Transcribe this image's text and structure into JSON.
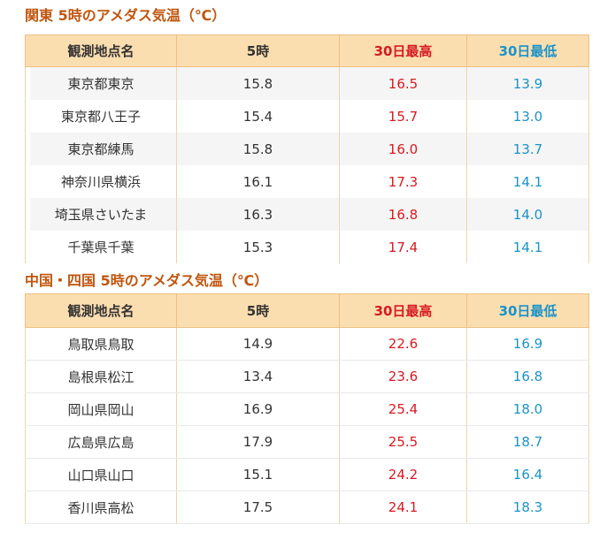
{
  "sections": [
    {
      "title": "関東 5時のアメダス気温（℃）",
      "headers": {
        "station": "観測地点名",
        "current": "5時",
        "high": "30日最高",
        "low": "30日最低"
      },
      "rows": [
        {
          "station": "東京都東京",
          "current": "15.8",
          "high": "16.5",
          "low": "13.9"
        },
        {
          "station": "東京都八王子",
          "current": "15.4",
          "high": "15.7",
          "low": "13.0"
        },
        {
          "station": "東京都練馬",
          "current": "15.8",
          "high": "16.0",
          "low": "13.7"
        },
        {
          "station": "神奈川県横浜",
          "current": "16.1",
          "high": "17.3",
          "low": "14.1"
        },
        {
          "station": "埼玉県さいたま",
          "current": "16.3",
          "high": "16.8",
          "low": "14.0"
        },
        {
          "station": "千葉県千葉",
          "current": "15.3",
          "high": "17.4",
          "low": "14.1"
        }
      ]
    },
    {
      "title": "中国・四国 5時のアメダス気温（℃）",
      "headers": {
        "station": "観測地点名",
        "current": "5時",
        "high": "30日最高",
        "low": "30日最低"
      },
      "rows": [
        {
          "station": "鳥取県鳥取",
          "current": "14.9",
          "high": "22.6",
          "low": "16.9"
        },
        {
          "station": "島根県松江",
          "current": "13.4",
          "high": "23.6",
          "low": "16.8"
        },
        {
          "station": "岡山県岡山",
          "current": "16.9",
          "high": "25.4",
          "low": "18.0"
        },
        {
          "station": "広島県広島",
          "current": "17.9",
          "high": "25.5",
          "low": "18.7"
        },
        {
          "station": "山口県山口",
          "current": "15.1",
          "high": "24.2",
          "low": "16.4"
        },
        {
          "station": "香川県高松",
          "current": "17.5",
          "high": "24.1",
          "low": "18.3"
        }
      ]
    }
  ],
  "colors": {
    "title": "#c0560f",
    "header_bg": "#fbdeb0",
    "high": "#d71a20",
    "low": "#1a93c9"
  }
}
